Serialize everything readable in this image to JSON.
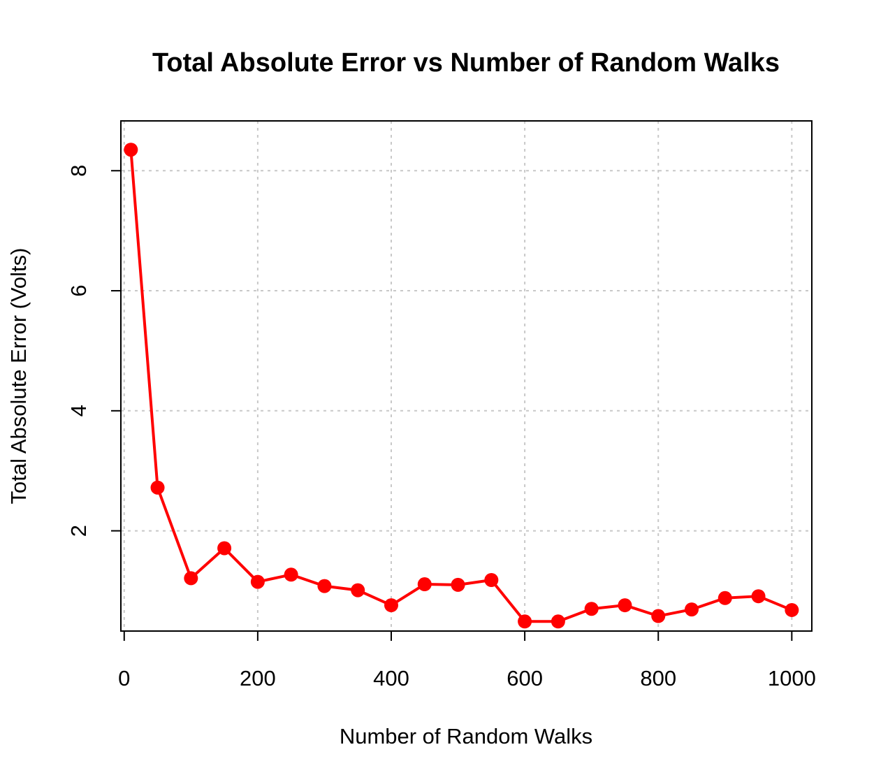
{
  "chart_data": {
    "type": "line",
    "title": "Total Absolute Error vs Number of Random Walks",
    "xlabel": "Number of Random Walks",
    "ylabel": "Total Absolute Error (Volts)",
    "xlim": [
      -5,
      1030
    ],
    "ylim": [
      0.33,
      8.83
    ],
    "xticks": [
      0,
      200,
      400,
      600,
      800,
      1000
    ],
    "yticks": [
      2,
      4,
      6,
      8
    ],
    "grid": true,
    "legend": "none",
    "series": [
      {
        "color": "#ff0000",
        "x": [
          10,
          50,
          100,
          150,
          200,
          250,
          300,
          350,
          400,
          450,
          500,
          550,
          600,
          650,
          700,
          750,
          800,
          850,
          900,
          950,
          1000
        ],
        "y": [
          8.35,
          2.72,
          1.21,
          1.71,
          1.15,
          1.27,
          1.08,
          1.01,
          0.76,
          1.11,
          1.1,
          1.18,
          0.49,
          0.49,
          0.7,
          0.76,
          0.58,
          0.69,
          0.88,
          0.91,
          0.68
        ]
      }
    ]
  }
}
